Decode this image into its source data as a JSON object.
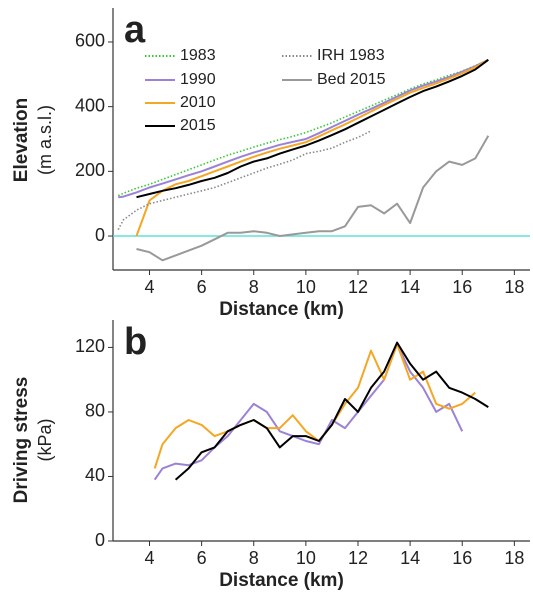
{
  "chart_data": [
    {
      "type": "line",
      "label": "a",
      "xlabel": "Distance (km)",
      "ylabel": "Elevation",
      "ylabel_unit": "(m a.s.l.)",
      "xlim": [
        2.6,
        18.6
      ],
      "ylim": [
        -105,
        705
      ],
      "xticks": [
        4,
        6,
        8,
        10,
        12,
        14,
        16,
        18
      ],
      "yticks": [
        0,
        200,
        400,
        600
      ],
      "hlines": [
        {
          "value": 0,
          "color": "#5fe3d6"
        }
      ],
      "x": [
        2.8,
        3.0,
        3.5,
        4.0,
        4.5,
        5.0,
        5.5,
        6.0,
        6.5,
        7.0,
        7.5,
        8.0,
        8.5,
        9.0,
        9.5,
        10.0,
        10.5,
        11.0,
        11.5,
        12.0,
        12.5,
        13.0,
        13.5,
        14.0,
        14.5,
        15.0,
        15.5,
        16.0,
        16.5,
        17.0
      ],
      "series": [
        {
          "name": "1983",
          "color": "#33cc33",
          "style": "dotted",
          "values": [
            125,
            132,
            148,
            160,
            175,
            190,
            205,
            220,
            235,
            250,
            262,
            275,
            287,
            298,
            308,
            320,
            335,
            350,
            368,
            385,
            402,
            420,
            437,
            455,
            470,
            483,
            497,
            510,
            527,
            545
          ]
        },
        {
          "name": "1990",
          "color": "#9b82d6",
          "style": "solid",
          "values": [
            120,
            122,
            135,
            150,
            162,
            175,
            188,
            200,
            215,
            230,
            245,
            258,
            270,
            282,
            291,
            300,
            318,
            337,
            356,
            375,
            393,
            412,
            431,
            450,
            465,
            478,
            492,
            508,
            525,
            545
          ]
        },
        {
          "name": "2010",
          "color": "#f5a623",
          "style": "solid",
          "values": [
            null,
            null,
            0,
            110,
            140,
            160,
            170,
            185,
            200,
            215,
            230,
            245,
            258,
            270,
            280,
            290,
            308,
            327,
            345,
            365,
            385,
            405,
            424,
            443,
            458,
            472,
            487,
            503,
            522,
            545
          ]
        },
        {
          "name": "2015",
          "color": "#000000",
          "style": "solid",
          "values": [
            null,
            null,
            120,
            130,
            140,
            148,
            158,
            170,
            180,
            195,
            215,
            230,
            240,
            255,
            268,
            280,
            295,
            312,
            330,
            350,
            370,
            390,
            410,
            430,
            448,
            462,
            478,
            495,
            515,
            545
          ]
        },
        {
          "name": "IRH 1983",
          "color": "#888888",
          "style": "dotted",
          "values": [
            20,
            50,
            80,
            100,
            110,
            120,
            130,
            140,
            150,
            165,
            180,
            195,
            210,
            222,
            235,
            255,
            262,
            272,
            290,
            305,
            325,
            null,
            null,
            null,
            null,
            null,
            null,
            null,
            null,
            null
          ]
        },
        {
          "name": "Bed 2015",
          "color": "#999999",
          "style": "solid",
          "values": [
            null,
            null,
            -40,
            -50,
            -75,
            -60,
            -45,
            -30,
            -10,
            10,
            10,
            15,
            10,
            0,
            5,
            10,
            15,
            15,
            30,
            90,
            95,
            70,
            100,
            40,
            150,
            200,
            230,
            220,
            240,
            310
          ]
        }
      ]
    },
    {
      "type": "line",
      "label": "b",
      "xlabel": "Distance (km)",
      "ylabel": "Driving stress",
      "ylabel_unit": "(kPa)",
      "xlim": [
        2.6,
        18.6
      ],
      "ylim": [
        0,
        137
      ],
      "xticks": [
        4,
        6,
        8,
        10,
        12,
        14,
        16,
        18
      ],
      "yticks": [
        0,
        40,
        80,
        120
      ],
      "x": [
        4.2,
        4.5,
        5.0,
        5.5,
        6.0,
        6.5,
        7.0,
        7.5,
        8.0,
        8.5,
        9.0,
        9.5,
        10.0,
        10.5,
        11.0,
        11.5,
        12.0,
        12.5,
        13.0,
        13.5,
        14.0,
        14.5,
        15.0,
        15.5,
        16.0,
        16.5,
        17.0
      ],
      "series": [
        {
          "color": "#9b82d6",
          "style": "solid",
          "values": [
            38,
            45,
            48,
            47,
            50,
            58,
            65,
            75,
            85,
            80,
            68,
            65,
            62,
            60,
            75,
            70,
            80,
            90,
            100,
            122,
            105,
            95,
            80,
            85,
            68,
            null,
            null
          ]
        },
        {
          "color": "#f5a623",
          "style": "solid",
          "values": [
            45,
            60,
            70,
            75,
            72,
            65,
            68,
            72,
            75,
            70,
            70,
            78,
            68,
            62,
            72,
            85,
            95,
            118,
            100,
            122,
            100,
            105,
            85,
            82,
            85,
            92,
            null
          ]
        },
        {
          "color": "#000000",
          "style": "solid",
          "values": [
            null,
            null,
            38,
            45,
            55,
            58,
            68,
            72,
            75,
            70,
            58,
            65,
            65,
            62,
            72,
            88,
            80,
            95,
            105,
            123,
            110,
            100,
            105,
            95,
            92,
            88,
            83
          ]
        }
      ]
    }
  ]
}
